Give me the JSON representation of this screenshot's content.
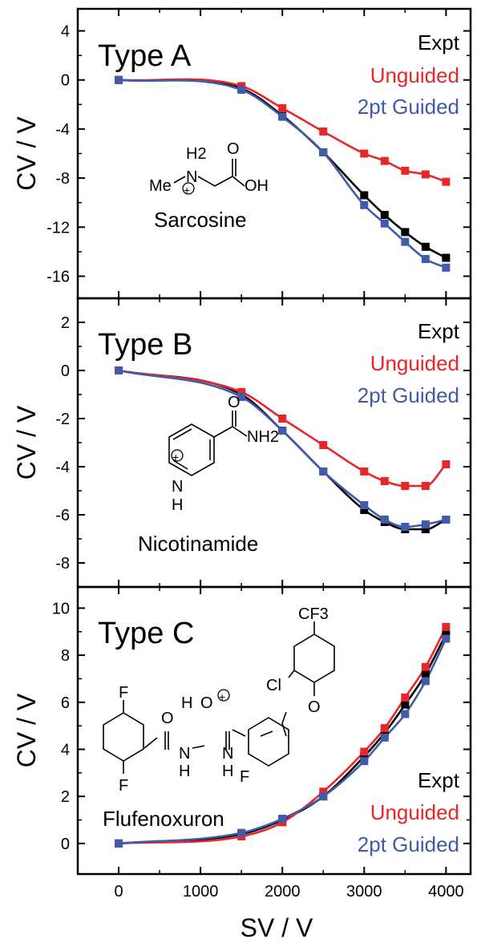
{
  "colors": {
    "expt": "#000000",
    "unguided": "#e8262a",
    "guided": "#3f5ba9"
  },
  "xlabel": "SV / V",
  "ylabel": "CV / V",
  "x_tick_labels": [
    "0",
    "1000",
    "2000",
    "3000",
    "4000"
  ],
  "chart_data": [
    {
      "type": "line",
      "title": "Type A",
      "ylabel": "CV / V",
      "xlim": [
        -500,
        4300
      ],
      "ylim": [
        -17.8,
        5.8
      ],
      "yticks": [
        4,
        0,
        -4,
        -8,
        -12,
        -16
      ],
      "ytick_labels": [
        "4",
        "0",
        "-4",
        "-8",
        "-12",
        "-16"
      ],
      "legend": [
        "Expt",
        "Unguided",
        "2pt Guided"
      ],
      "legend_placement": "top-right",
      "molecule": {
        "name": "Sarcosine",
        "atoms": [
          "H2",
          "N",
          "Me",
          "O",
          "OH",
          "+"
        ]
      },
      "x": [
        0,
        1500,
        2000,
        2500,
        3000,
        3250,
        3500,
        3750,
        4000
      ],
      "series": [
        {
          "name": "Expt",
          "color": "#000000",
          "values": [
            0,
            -0.7,
            -2.9,
            -5.9,
            -9.4,
            -11.0,
            -12.4,
            -13.6,
            -14.5
          ]
        },
        {
          "name": "Unguided",
          "color": "#e8262a",
          "values": [
            0,
            -0.5,
            -2.3,
            -4.2,
            -6.0,
            -6.6,
            -7.4,
            -7.7,
            -8.3
          ]
        },
        {
          "name": "2pt Guided",
          "color": "#3f5ba9",
          "values": [
            0,
            -0.8,
            -3.0,
            -5.9,
            -10.2,
            -11.7,
            -13.2,
            -14.6,
            -15.3
          ]
        }
      ]
    },
    {
      "type": "line",
      "title": "Type B",
      "ylabel": "CV / V",
      "xlim": [
        -500,
        4300
      ],
      "ylim": [
        -9.0,
        3.0
      ],
      "yticks": [
        2,
        0,
        -2,
        -4,
        -6,
        -8
      ],
      "ytick_labels": [
        "2",
        "0",
        "-2",
        "-4",
        "-6",
        "-8"
      ],
      "legend": [
        "Expt",
        "Unguided",
        "2pt Guided"
      ],
      "legend_placement": "top-right",
      "molecule": {
        "name": "Nicotinamide",
        "atoms": [
          "O",
          "NH2",
          "N",
          "H",
          "+"
        ]
      },
      "x": [
        0,
        1500,
        2000,
        2500,
        3000,
        3250,
        3500,
        3750,
        4000
      ],
      "series": [
        {
          "name": "Expt",
          "color": "#000000",
          "values": [
            0,
            -1.0,
            -2.5,
            -4.2,
            -5.8,
            -6.3,
            -6.6,
            -6.6,
            -6.2
          ]
        },
        {
          "name": "Unguided",
          "color": "#e8262a",
          "values": [
            0,
            -0.9,
            -2.0,
            -3.1,
            -4.2,
            -4.6,
            -4.8,
            -4.8,
            -3.9
          ]
        },
        {
          "name": "2pt Guided",
          "color": "#3f5ba9",
          "values": [
            0,
            -1.1,
            -2.5,
            -4.2,
            -5.6,
            -6.2,
            -6.5,
            -6.4,
            -6.2
          ]
        }
      ]
    },
    {
      "type": "line",
      "title": "Type C",
      "ylabel": "CV / V",
      "xlim": [
        -500,
        4300
      ],
      "ylim": [
        -1.3,
        10.9
      ],
      "yticks": [
        10,
        8,
        6,
        4,
        2,
        0
      ],
      "ytick_labels": [
        "10",
        "8",
        "6",
        "4",
        "2",
        "0"
      ],
      "legend": [
        "Expt",
        "Unguided",
        "2pt Guided"
      ],
      "legend_placement": "bottom-right",
      "molecule": {
        "name": "Flufenoxuron",
        "atoms": [
          "CF3",
          "Cl",
          "O",
          "F",
          "O",
          "H",
          "O",
          "N",
          "H",
          "N",
          "H",
          "F",
          "+"
        ]
      },
      "x": [
        0,
        1500,
        2000,
        2500,
        3000,
        3250,
        3500,
        3750,
        4000
      ],
      "series": [
        {
          "name": "Expt",
          "color": "#000000",
          "values": [
            0,
            0.4,
            1.0,
            2.0,
            3.7,
            4.7,
            5.9,
            7.2,
            8.9
          ]
        },
        {
          "name": "Unguided",
          "color": "#e8262a",
          "values": [
            0,
            0.3,
            0.9,
            2.2,
            3.9,
            4.9,
            6.2,
            7.5,
            9.2
          ]
        },
        {
          "name": "2pt Guided",
          "color": "#3f5ba9",
          "values": [
            0,
            0.45,
            1.05,
            2.0,
            3.5,
            4.5,
            5.5,
            6.9,
            8.7
          ]
        }
      ]
    }
  ]
}
